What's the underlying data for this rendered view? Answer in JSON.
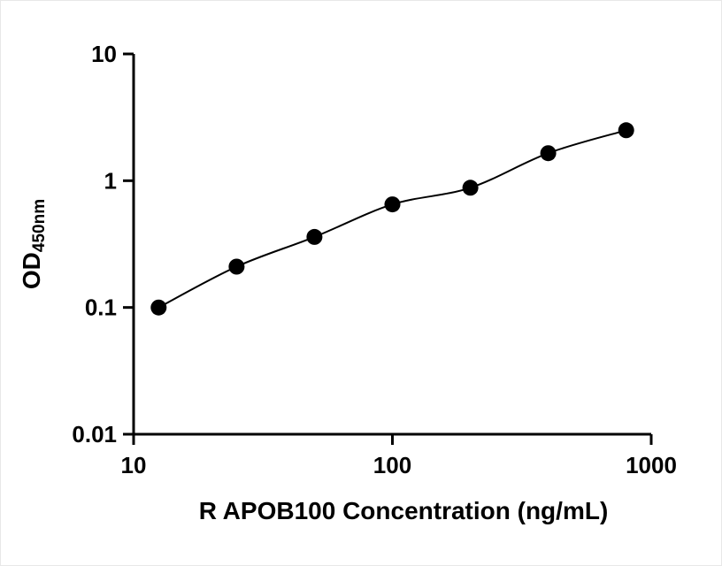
{
  "page": {
    "background": "#ffffff"
  },
  "chart_data": {
    "type": "scatter",
    "title": "",
    "xlabel": "R APOB100 Concentration (ng/mL)",
    "ylabel_main": "OD",
    "ylabel_sub": "450nm",
    "x": [
      12.5,
      25,
      50,
      100,
      200,
      400,
      800
    ],
    "y": [
      0.1,
      0.21,
      0.36,
      0.65,
      0.88,
      1.65,
      2.5
    ],
    "xlim": [
      10,
      1000
    ],
    "ylim": [
      0.01,
      10
    ],
    "xscale": "log",
    "yscale": "log",
    "xticks": [
      10,
      100,
      1000
    ],
    "yticks": [
      0.01,
      0.1,
      1,
      10
    ],
    "grid": false,
    "legend": "none",
    "line": true,
    "line_color": "#000000",
    "marker": "circle",
    "marker_color": "#000000"
  }
}
